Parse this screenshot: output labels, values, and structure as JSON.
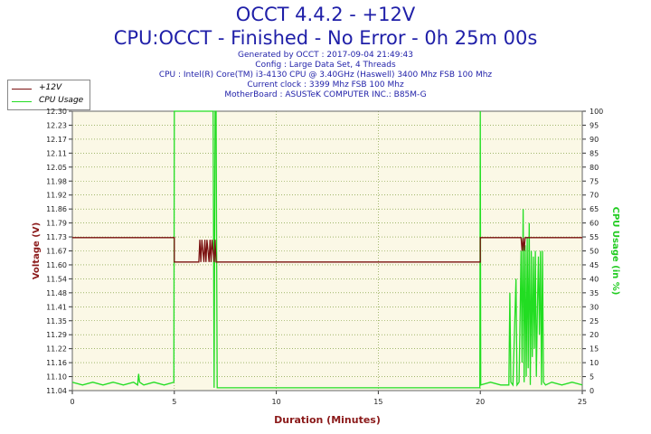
{
  "header": {
    "title": "OCCT 4.4.2 - +12V",
    "subtitle": "CPU:OCCT - Finished - No Error - 0h 25m 00s",
    "info_lines": [
      "Generated by OCCT : 2017-09-04 21:49:43",
      "Config : Large Data Set, 4 Threads",
      "CPU : Intel(R) Core(TM) i3-4130 CPU @ 3.40GHz (Haswell) 3400 Mhz FSB 100 Mhz",
      "Current clock : 3399 Mhz FSB 100 Mhz",
      "MotherBoard : ASUSTeK COMPUTER INC.: B85M-G"
    ]
  },
  "colors": {
    "voltage": "#7a1010",
    "cpu": "#22dd22",
    "plot_bg": "#fbf8e6",
    "grid": "#6b8e23",
    "title": "#1f1fa8"
  },
  "chart_data": {
    "type": "line",
    "xlabel": "Duration (Minutes)",
    "ylabel_left": "Voltage (V)",
    "ylabel_right": "CPU Usage (in %)",
    "xlim": [
      0,
      25
    ],
    "ylim_left": [
      11.04,
      12.3
    ],
    "ylim_right": [
      0,
      100
    ],
    "x_ticks": [
      "0",
      "5",
      "10",
      "15",
      "20",
      "25"
    ],
    "y_left_ticks": [
      "11.04",
      "11.10",
      "11.16",
      "11.22",
      "11.29",
      "11.35",
      "11.41",
      "11.48",
      "11.54",
      "11.60",
      "11.67",
      "11.73",
      "11.79",
      "11.86",
      "11.92",
      "11.98",
      "12.05",
      "12.11",
      "12.17",
      "12.23",
      "12.30"
    ],
    "y_right_ticks": [
      "0",
      "5",
      "10",
      "15",
      "20",
      "25",
      "30",
      "35",
      "40",
      "45",
      "50",
      "55",
      "60",
      "65",
      "70",
      "75",
      "80",
      "85",
      "90",
      "95",
      "100"
    ],
    "grid": true,
    "legend_position": "top-left",
    "series": [
      {
        "name": "+12V",
        "axis": "left",
        "x": [
          0,
          5,
          5,
          6.2,
          6.25,
          6.3,
          6.35,
          6.45,
          6.5,
          6.55,
          6.6,
          6.7,
          6.75,
          6.8,
          6.85,
          6.95,
          7.0,
          7.05,
          7.1,
          20,
          20,
          22.0,
          22.05,
          22.1,
          22.15,
          22.2,
          25
        ],
        "y": [
          11.73,
          11.73,
          11.62,
          11.62,
          11.72,
          11.62,
          11.72,
          11.62,
          11.72,
          11.62,
          11.72,
          11.62,
          11.72,
          11.62,
          11.72,
          11.62,
          11.72,
          11.62,
          11.62,
          11.62,
          11.73,
          11.73,
          11.67,
          11.73,
          11.67,
          11.73,
          11.73
        ]
      },
      {
        "name": "CPU Usage",
        "axis": "right",
        "x": [
          0,
          0.5,
          1,
          1.5,
          2,
          2.5,
          3,
          3.2,
          3.25,
          3.3,
          3.5,
          4,
          4.5,
          4.98,
          5.0,
          5.02,
          6.9,
          6.95,
          7.0,
          7.05,
          7.1,
          19.98,
          20.0,
          20.02,
          20.5,
          21,
          21.4,
          21.45,
          21.5,
          21.6,
          21.75,
          21.8,
          21.9,
          22.0,
          22.05,
          22.1,
          22.15,
          22.2,
          22.25,
          22.3,
          22.35,
          22.4,
          22.45,
          22.5,
          22.55,
          22.6,
          22.65,
          22.7,
          22.75,
          22.8,
          22.85,
          22.9,
          22.95,
          23.0,
          23.05,
          23.1,
          23.2,
          23.5,
          24,
          24.5,
          25
        ],
        "y": [
          3,
          2,
          3,
          2,
          3,
          2,
          3,
          2,
          6,
          3,
          2,
          3,
          2,
          3,
          100,
          100,
          100,
          1,
          100,
          100,
          1,
          1,
          100,
          2,
          3,
          2,
          2,
          35,
          3,
          2,
          40,
          2,
          3,
          50,
          10,
          65,
          3,
          52,
          5,
          55,
          8,
          60,
          2,
          50,
          12,
          48,
          15,
          50,
          5,
          30,
          48,
          20,
          50,
          2,
          50,
          3,
          2,
          3,
          2,
          3,
          2
        ]
      }
    ]
  }
}
